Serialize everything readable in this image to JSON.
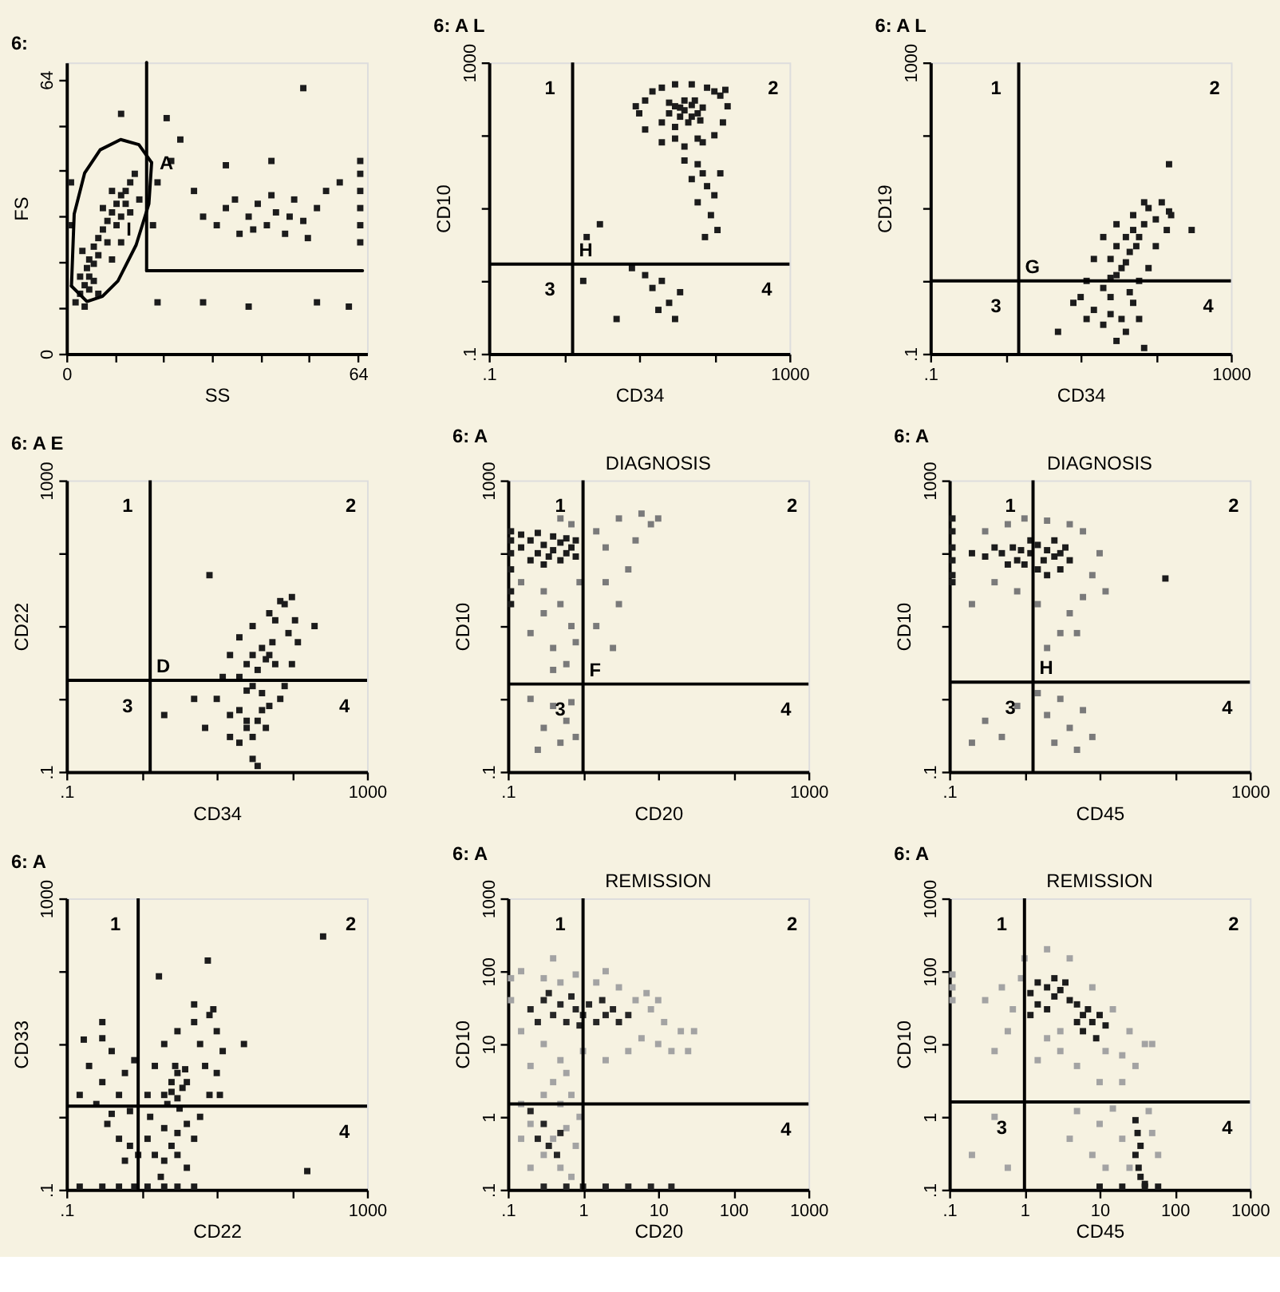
{
  "chart_data": [
    {
      "type": "scatter",
      "title": "6:",
      "xlabel": "SS",
      "ylabel": "FS",
      "xlim": [
        0,
        66
      ],
      "ylim": [
        0,
        68
      ],
      "xticks": [
        0,
        {
          "value": 10.7,
          "label": null
        },
        {
          "value": 21.3,
          "label": null
        },
        {
          "value": 32,
          "label": null
        },
        {
          "value": 42.7,
          "label": null
        },
        {
          "value": 53.3,
          "label": null
        },
        64
      ],
      "yticks": [
        0,
        {
          "value": 10.7,
          "label": null
        },
        {
          "value": 21.3,
          "label": null
        },
        {
          "value": 32,
          "label": null
        },
        {
          "value": 42.7,
          "label": null
        },
        {
          "value": 53.3,
          "label": null
        },
        64
      ],
      "series": [
        {
          "color": "#1c1c1c",
          "marker": "square",
          "x": [
            3,
            4,
            5,
            4.5,
            5,
            6,
            3.5,
            6,
            7,
            8,
            9,
            10,
            11,
            12,
            13,
            14,
            10,
            8,
            12,
            7,
            5,
            3,
            6,
            9,
            11,
            13,
            15,
            2,
            4,
            7,
            10,
            12,
            14,
            16,
            30,
            33,
            35,
            38,
            40,
            42,
            44,
            46,
            48,
            50,
            52,
            55,
            57,
            53,
            45,
            37,
            41,
            49,
            64.5,
            64.5,
            64.5,
            64.5,
            64.5,
            64.5,
            20,
            23,
            25,
            28,
            35,
            45,
            60,
            22,
            55,
            40,
            30,
            62,
            20,
            52,
            12,
            1,
            1,
            19
          ],
          "values": [
            14,
            16,
            18,
            20,
            22,
            21,
            24,
            25,
            27,
            29,
            31,
            33,
            35,
            37,
            38,
            40,
            38,
            34,
            32,
            23,
            15,
            18,
            17,
            26,
            30,
            35,
            42,
            12,
            11,
            14,
            22,
            26,
            33,
            36,
            32,
            30,
            34,
            28,
            32,
            35,
            30,
            33,
            28,
            36,
            31,
            34,
            38,
            27,
            37,
            36,
            29,
            32,
            26,
            30,
            34,
            38,
            42,
            45,
            40,
            45,
            50,
            38,
            44,
            45,
            40,
            55,
            12,
            11,
            12,
            11,
            12,
            62,
            56,
            30,
            40,
            30
          ]
        },
        {
          "type": "line",
          "name": "A",
          "color": "#000000",
          "x": [
            1.1,
            1.7,
            4.0,
            7.4,
            11.9,
            15.9,
            18.7
          ],
          "values": [
            15.8,
            32.6,
            42.2,
            47.6,
            50.0,
            48.8,
            44.6
          ]
        },
        {
          "type": "line",
          "color": "#000000",
          "x": [
            1.1,
            4.5,
            7.9,
            11.3,
            15.3,
            18.1,
            18.7
          ],
          "values": [
            15.8,
            12.2,
            13.4,
            17.0,
            25.4,
            35.0,
            44.6
          ]
        },
        {
          "type": "line",
          "color": "#000000",
          "x": [
            17.6,
            65
          ],
          "values": [
            19.4,
            19.4
          ]
        },
        {
          "type": "line",
          "color": "#000000",
          "x": [
            17.6,
            17.6
          ],
          "values": [
            19.4,
            68
          ]
        }
      ],
      "annotations": [
        {
          "text": "I",
          "x": 18.1,
          "y": 35
        }
      ]
    },
    {
      "type": "scatter",
      "title": "6: A L",
      "xlabel": "CD34",
      "ylabel": "CD10",
      "log": "xy",
      "xlim": [
        0.1,
        1000
      ],
      "ylim": [
        0.1,
        1000
      ],
      "xticks": [
        {
          "value": 0.1,
          "label": ".1"
        },
        {
          "value": 1,
          "label": null
        },
        {
          "value": 10,
          "label": null
        },
        {
          "value": 100,
          "label": null
        },
        1000
      ],
      "yticks": [
        {
          "value": 0.1,
          "label": ".1"
        },
        {
          "value": 1,
          "label": null
        },
        {
          "value": 10,
          "label": null
        },
        {
          "value": 100,
          "label": null
        },
        1000
      ],
      "series": [
        {
          "color": "#1c1c1c",
          "marker": "square",
          "x": [
            20,
            25,
            30,
            35,
            40,
            50,
            60,
            45,
            70,
            55,
            30,
            40,
            65,
            25,
            50,
            35,
            10,
            12,
            15,
            20,
            30,
            50,
            80,
            120,
            150,
            130,
            100,
            70,
            40,
            20,
            12,
            9,
            100,
            140,
            60,
            30,
            60,
            70,
            80,
            100,
            60,
            90,
            110,
            75,
            50,
            120,
            40,
            12,
            15,
            20,
            25,
            30,
            18,
            35,
            2,
            1.8,
            3,
            8,
            5
          ],
          "values": [
            150,
            200,
            250,
            180,
            220,
            260,
            200,
            150,
            240,
            300,
            130,
            300,
            160,
            280,
            180,
            240,
            200,
            300,
            400,
            450,
            500,
            500,
            450,
            350,
            250,
            150,
            100,
            80,
            70,
            80,
            120,
            250,
            400,
            420,
            90,
            90,
            40,
            30,
            20,
            15,
            12,
            8,
            5,
            4,
            25,
            30,
            45,
            1.2,
            0.8,
            1.0,
            0.5,
            0.3,
            0.4,
            0.7,
            4,
            1.0,
            6,
            1.5,
            0.3
          ]
        }
      ],
      "ref_lines": [
        {
          "axis": "x",
          "value": 1.3,
          "color": "#000000",
          "label": "H"
        },
        {
          "axis": "y",
          "value": 1.7,
          "color": "#000000"
        }
      ],
      "annotations": [
        {
          "text": "1",
          "x": 1.3,
          "y": 1000
        },
        "2",
        {
          "text": "3",
          "x": 1.3,
          "y": 1.7
        },
        {
          "text": "4",
          "x": 1000,
          "y": 1.7
        }
      ]
    },
    {
      "type": "scatter",
      "title": "6: A L",
      "xlabel": "CD34",
      "ylabel": "CD19",
      "log": "xy",
      "xlim": [
        0.1,
        1000
      ],
      "ylim": [
        0.1,
        1000
      ],
      "xticks": [
        {
          "value": 0.1,
          "label": ".1"
        },
        {
          "value": 1,
          "label": null
        },
        {
          "value": 10,
          "label": null
        },
        {
          "value": 100,
          "label": null
        },
        1000
      ],
      "yticks": [
        {
          "value": 0.1,
          "label": ".1"
        },
        {
          "value": 1,
          "label": null
        },
        {
          "value": 10,
          "label": null
        },
        {
          "value": 100,
          "label": null
        },
        1000
      ],
      "series": [
        {
          "color": "#1c1c1c",
          "marker": "square",
          "x": [
            25,
            30,
            40,
            50,
            35,
            45,
            60,
            30,
            55,
            70,
            40,
            25,
            12,
            15,
            20,
            30,
            50,
            80,
            120,
            150,
            140,
            100,
            80,
            60,
            20,
            10,
            100,
            160,
            70,
            8,
            15,
            25,
            35,
            50,
            20,
            40,
            60,
            30,
            70,
            12,
            45,
            25,
            300,
            150,
            5
          ],
          "values": [
            2,
            3,
            4,
            5,
            1.5,
            2.5,
            4,
            1.2,
            3,
            6,
            1.8,
            1.1,
            1,
            2,
            4,
            6,
            8,
            10,
            12,
            9,
            5,
            3,
            1.5,
            1,
            0.8,
            0.6,
            7,
            8,
            12,
            0.5,
            0.4,
            0.6,
            0.3,
            0.5,
            0.25,
            0.2,
            0.3,
            0.15,
            0.12,
            0.3,
            0.7,
            0.35,
            5,
            40,
            0.2
          ]
        }
      ],
      "ref_lines": [
        {
          "axis": "x",
          "value": 1.5,
          "color": "#000000",
          "label": "G"
        },
        {
          "axis": "y",
          "value": 1,
          "color": "#000000"
        }
      ],
      "annotations": [
        {
          "text": "1",
          "x": 1.5,
          "y": 1000
        },
        "2",
        {
          "text": "3",
          "x": 1.5,
          "y": 1
        },
        {
          "text": "4",
          "x": 1000,
          "y": 1
        }
      ]
    },
    {
      "type": "scatter",
      "title": "6: A E",
      "xlabel": "CD34",
      "ylabel": "CD22",
      "log": "xy",
      "xlim": [
        0.1,
        1000
      ],
      "ylim": [
        0.1,
        1000
      ],
      "xticks": [
        {
          "value": 0.1,
          "label": ".1"
        },
        {
          "value": 1,
          "label": null
        },
        {
          "value": 10,
          "label": null
        },
        {
          "value": 100,
          "label": null
        },
        1000
      ],
      "yticks": [
        {
          "value": 0.1,
          "label": ".1"
        },
        {
          "value": 1,
          "label": null
        },
        {
          "value": 10,
          "label": null
        },
        {
          "value": 100,
          "label": null
        },
        1000
      ],
      "series": [
        {
          "color": "#1c1c1c",
          "marker": "square",
          "x": [
            20,
            25,
            30,
            35,
            40,
            45,
            50,
            30,
            40,
            25,
            55,
            60,
            10,
            12,
            15,
            20,
            30,
            50,
            80,
            100,
            110,
            120,
            100,
            80,
            70,
            15,
            60,
            90,
            70,
            20,
            25,
            30,
            35,
            40,
            20,
            30,
            45,
            50,
            35,
            25,
            15,
            7,
            5,
            200,
            8,
            2
          ],
          "values": [
            2,
            3,
            4,
            2.5,
            5,
            3.5,
            4,
            1.5,
            1.2,
            1.3,
            6,
            3,
            1,
            2,
            4,
            7,
            10,
            15,
            20,
            25,
            12,
            6,
            3,
            1.5,
            1,
            0.6,
            12,
            8,
            22,
            0.7,
            0.4,
            0.3,
            0.5,
            0.7,
            0.25,
            0.15,
            0.4,
            0.8,
            0.12,
            0.5,
            0.3,
            0.4,
            1,
            10,
            50,
            0.6
          ]
        }
      ],
      "ref_lines": [
        {
          "axis": "x",
          "value": 1.3,
          "color": "#000000",
          "label": "D"
        },
        {
          "axis": "y",
          "value": 1.8,
          "color": "#000000"
        }
      ],
      "annotations": [
        {
          "text": "1",
          "x": 1.3,
          "y": 1000
        },
        "2",
        {
          "text": "3",
          "x": 1.3,
          "y": 1.8
        },
        {
          "text": "4",
          "x": 1000,
          "y": 1.8
        }
      ]
    },
    {
      "type": "scatter",
      "title": "6: A",
      "subtitle": "DIAGNOSIS",
      "xlabel": "CD20",
      "ylabel": "CD10",
      "log": "xy",
      "xlim": [
        0.1,
        1000
      ],
      "ylim": [
        0.1,
        1000
      ],
      "xticks": [
        {
          "value": 0.1,
          "label": ".1"
        },
        {
          "value": 1,
          "label": null
        },
        {
          "value": 10,
          "label": null
        },
        {
          "value": 100,
          "label": null
        },
        1000
      ],
      "yticks": [
        {
          "value": 0.1,
          "label": ".1"
        },
        {
          "value": 1,
          "label": null
        },
        {
          "value": 10,
          "label": null
        },
        {
          "value": 100,
          "label": null
        },
        1000
      ],
      "series": [
        {
          "color": "#1c1c1c",
          "marker": "square",
          "x": [
            0.11,
            0.11,
            0.11,
            0.11,
            0.11,
            0.11,
            0.15,
            0.2,
            0.25,
            0.3,
            0.4,
            0.5,
            0.6,
            0.7,
            0.8,
            0.2,
            0.3,
            0.5,
            0.15,
            0.4,
            0.6,
            0.8,
            0.25,
            0.35
          ],
          "values": [
            100,
            150,
            60,
            30,
            20,
            200,
            120,
            150,
            100,
            130,
            110,
            140,
            100,
            120,
            90,
            80,
            70,
            80,
            180,
            170,
            160,
            150,
            190,
            90
          ]
        },
        {
          "color": "#7a7a7a",
          "marker": "square",
          "x": [
            0.15,
            0.3,
            0.5,
            0.7,
            0.2,
            0.4,
            0.6,
            0.8,
            0.3,
            0.9,
            0.5,
            0.7,
            0.4,
            1.5,
            2,
            3,
            5,
            8,
            4,
            2,
            6,
            10,
            3,
            1.5,
            2.5,
            0.2,
            0.4,
            0.6,
            0.3,
            0.5,
            0.8,
            0.25,
            0.7
          ],
          "values": [
            40,
            30,
            20,
            10,
            8,
            5,
            3,
            6,
            15,
            40,
            300,
            250,
            2.5,
            200,
            120,
            300,
            150,
            250,
            60,
            40,
            350,
            300,
            20,
            10,
            5,
            1,
            0.8,
            0.5,
            0.4,
            0.25,
            0.3,
            0.2,
            0.9
          ]
        }
      ],
      "ref_lines": [
        {
          "axis": "x",
          "value": 1,
          "color": "#000000",
          "label": "F"
        },
        {
          "axis": "y",
          "value": 1.6,
          "color": "#000000"
        }
      ],
      "annotations": [
        {
          "text": "1",
          "x": 1,
          "y": 1000
        },
        "2",
        {
          "text": "3",
          "x": 1,
          "y": 1.6
        },
        {
          "text": "4",
          "x": 1000,
          "y": 1.6
        }
      ]
    },
    {
      "type": "scatter",
      "title": "6: A",
      "subtitle": "DIAGNOSIS",
      "xlabel": "CD45",
      "ylabel": "CD10",
      "log": "xy",
      "xlim": [
        0.1,
        1000
      ],
      "ylim": [
        0.1,
        1000
      ],
      "xticks": [
        {
          "value": 0.1,
          "label": ".1"
        },
        {
          "value": 1,
          "label": null
        },
        {
          "value": 10,
          "label": null
        },
        {
          "value": 100,
          "label": null
        },
        1000
      ],
      "yticks": [
        {
          "value": 0.1,
          "label": ".1"
        },
        {
          "value": 1,
          "label": null
        },
        {
          "value": 10,
          "label": null
        },
        {
          "value": 100,
          "label": null
        },
        1000
      ],
      "series": [
        {
          "color": "#1c1c1c",
          "marker": "square",
          "x": [
            0.11,
            0.11,
            0.11,
            0.11,
            0.11,
            0.11,
            0.2,
            0.3,
            0.5,
            0.7,
            0.9,
            1.2,
            1.5,
            2,
            2.5,
            3,
            4,
            1,
            1.5,
            2,
            3,
            0.8,
            1.2,
            2.5,
            0.4,
            1.8,
            3.5,
            0.6,
            75
          ],
          "values": [
            300,
            200,
            120,
            80,
            50,
            40,
            100,
            90,
            100,
            120,
            110,
            100,
            130,
            110,
            90,
            100,
            80,
            70,
            60,
            50,
            60,
            80,
            150,
            150,
            120,
            80,
            120,
            70,
            45
          ]
        },
        {
          "color": "#7a7a7a",
          "marker": "square",
          "x": [
            0.3,
            0.6,
            1,
            2,
            4,
            6,
            10,
            8,
            6,
            4,
            3,
            2,
            1.5,
            0.8,
            0.4,
            0.2,
            12,
            5,
            0.3,
            0.5,
            0.8,
            1.5,
            2,
            3,
            4,
            6,
            8,
            5,
            2.5,
            0.2
          ],
          "values": [
            200,
            250,
            300,
            280,
            250,
            200,
            100,
            50,
            25,
            15,
            8,
            5,
            20,
            30,
            40,
            20,
            30,
            8,
            0.5,
            0.3,
            0.8,
            1.2,
            0.6,
            1,
            0.4,
            0.7,
            0.3,
            0.2,
            0.25,
            0.25
          ]
        }
      ],
      "ref_lines": [
        {
          "axis": "x",
          "value": 1.3,
          "color": "#000000",
          "label": "H"
        },
        {
          "axis": "y",
          "value": 1.7,
          "color": "#000000"
        }
      ],
      "annotations": [
        {
          "text": "1",
          "x": 1.3,
          "y": 1000
        },
        "2",
        {
          "text": "3",
          "x": 1.3,
          "y": 1.7
        },
        {
          "text": "4",
          "x": 1000,
          "y": 1.7
        }
      ]
    },
    {
      "type": "scatter",
      "title": "6: A",
      "xlabel": "CD22",
      "ylabel": "CD33",
      "log": "xy",
      "xlim": [
        0.1,
        1000
      ],
      "ylim": [
        0.1,
        1000
      ],
      "xticks": [
        {
          "value": 0.1,
          "label": ".1"
        },
        {
          "value": 1,
          "label": null
        },
        {
          "value": 10,
          "label": null
        },
        {
          "value": 100,
          "label": null
        },
        1000
      ],
      "yticks": [
        {
          "value": 0.1,
          "label": ".1"
        },
        {
          "value": 1,
          "label": null
        },
        {
          "value": 10,
          "label": null
        },
        {
          "value": 100,
          "label": null
        },
        1000
      ],
      "series": [
        {
          "color": "#1c1c1c",
          "marker": "square",
          "x": [
            2,
            2.5,
            3,
            3.5,
            2.2,
            3,
            4,
            2.8,
            3.2,
            2.5,
            3.8,
            1.2,
            1.5,
            2,
            3,
            5,
            8,
            10,
            12,
            10,
            8,
            6,
            4,
            3,
            2,
            1.3,
            6,
            9,
            5,
            7,
            11,
            0.2,
            0.3,
            0.4,
            0.5,
            0.6,
            0.7,
            0.8,
            0.25,
            0.35,
            0.5,
            0.7,
            0.9,
            0.6,
            0.4,
            0.15,
            0.3,
            1.2,
            1.5,
            2,
            2.5,
            3,
            4,
            5,
            1.8,
            0.15,
            0.3,
            0.5,
            0.8,
            1.2,
            2,
            3,
            5,
            1.7,
            7.6,
            260,
            23,
            0.3,
            0.17,
            160
          ],
          "values": [
            2,
            3,
            4,
            2.5,
            1.5,
            1.8,
            3,
            5,
            1.3,
            2.2,
            4.5,
            2,
            5,
            10,
            15,
            20,
            25,
            15,
            8,
            4,
            2,
            1,
            0.8,
            0.6,
            0.7,
            1,
            10,
            30,
            35,
            5,
            2,
            5,
            3,
            8,
            2,
            4,
            1.2,
            6,
            1.5,
            0.8,
            0.5,
            0.4,
            0.3,
            0.25,
            1.1,
            2,
            12,
            0.5,
            0.3,
            0.25,
            0.4,
            0.3,
            0.2,
            0.5,
            0.15,
            0.11,
            0.11,
            0.11,
            0.11,
            0.11,
            0.11,
            0.11,
            0.11,
            85,
            140,
            300,
            10,
            20,
            11.5,
            0.18
          ]
        }
      ],
      "ref_lines": [
        {
          "axis": "x",
          "value": 0.9,
          "color": "#000000"
        },
        {
          "axis": "y",
          "value": 1.4,
          "color": "#000000"
        }
      ],
      "annotations": [
        {
          "text": "1",
          "x": 0.9,
          "y": 1000
        },
        "2",
        {
          "text": "4",
          "x": 1000,
          "y": 1.4
        }
      ]
    },
    {
      "type": "scatter",
      "title": "6: A",
      "subtitle": "REMISSION",
      "xlabel": "CD20",
      "ylabel": "CD10",
      "log": "xy",
      "xlim": [
        0.1,
        1000
      ],
      "ylim": [
        0.1,
        1000
      ],
      "xticks": [
        {
          "value": 0.1,
          "label": ".1"
        },
        1,
        10,
        100,
        1000
      ],
      "yticks": [
        {
          "value": 0.1,
          "label": ".1"
        },
        1,
        10,
        100,
        1000
      ],
      "series": [
        {
          "color": "#a3a3a3",
          "marker": "square",
          "x": [
            0.11,
            0.11,
            0.15,
            0.3,
            0.5,
            0.8,
            1.5,
            3,
            5,
            8,
            12,
            20,
            25,
            15,
            10,
            6,
            4,
            2,
            1,
            0.5,
            0.3,
            0.15,
            0.2,
            7,
            10,
            30,
            2,
            0.4,
            0.15,
            0.3,
            0.5,
            0.7,
            0.2,
            0.4,
            0.6,
            0.8,
            0.3,
            0.5,
            0.7,
            0.2,
            0.15,
            0.9,
            0.4,
            0.6
          ],
          "values": [
            80,
            40,
            100,
            80,
            70,
            90,
            70,
            60,
            40,
            30,
            20,
            15,
            8,
            8,
            10,
            12,
            8,
            6,
            8,
            6,
            10,
            15,
            5,
            50,
            40,
            15,
            100,
            150,
            1.5,
            2,
            1.5,
            2,
            0.8,
            0.5,
            0.7,
            0.4,
            0.3,
            0.2,
            0.15,
            0.2,
            0.5,
            1,
            3,
            4
          ]
        },
        {
          "color": "#262626",
          "marker": "square",
          "x": [
            0.2,
            0.3,
            0.4,
            0.5,
            0.6,
            0.8,
            1,
            1.2,
            1.5,
            2,
            2.5,
            3,
            0.35,
            0.7,
            1.8,
            0.25,
            4,
            0.9,
            0.25,
            0.35,
            0.5,
            0.3,
            0.45,
            0.2,
            0.3,
            0.6,
            1,
            2,
            4,
            8,
            15
          ],
          "values": [
            30,
            40,
            25,
            35,
            20,
            30,
            25,
            35,
            20,
            25,
            30,
            20,
            50,
            45,
            40,
            20,
            25,
            18,
            0.5,
            0.4,
            0.6,
            0.8,
            0.3,
            1.2,
            0.11,
            0.11,
            0.11,
            0.11,
            0.11,
            0.11,
            0.11
          ]
        }
      ],
      "ref_lines": [
        {
          "axis": "x",
          "value": 1,
          "color": "#000000"
        },
        {
          "axis": "y",
          "value": 1.5,
          "color": "#000000"
        }
      ],
      "annotations": [
        {
          "text": "1",
          "x": 1,
          "y": 1000
        },
        "2",
        {
          "text": "4",
          "x": 1000,
          "y": 1.5
        }
      ]
    },
    {
      "type": "scatter",
      "title": "6: A",
      "subtitle": "REMISSION",
      "xlabel": "CD45",
      "ylabel": "CD10",
      "log": "xy",
      "xlim": [
        0.1,
        1000
      ],
      "ylim": [
        0.1,
        1000
      ],
      "xticks": [
        {
          "value": 0.1,
          "label": ".1"
        },
        1,
        10,
        100,
        1000
      ],
      "yticks": [
        {
          "value": 0.1,
          "label": ".1"
        },
        1,
        10,
        100,
        1000
      ],
      "series": [
        {
          "color": "#a3a3a3",
          "marker": "square",
          "x": [
            0.11,
            0.11,
            0.11,
            0.3,
            0.5,
            0.7,
            0.9,
            1,
            2,
            4,
            8,
            15,
            25,
            40,
            30,
            20,
            10,
            5,
            3,
            2,
            1.5,
            0.6,
            3,
            12,
            20,
            50,
            0.4,
            5,
            10,
            15,
            20,
            8,
            25,
            50,
            60,
            4,
            12,
            45,
            0.2,
            0.4,
            0.6
          ],
          "values": [
            40,
            60,
            90,
            40,
            60,
            30,
            80,
            150,
            200,
            150,
            60,
            30,
            15,
            10,
            5,
            3,
            3,
            5,
            8,
            12,
            6,
            15,
            15,
            8,
            7,
            10,
            8,
            1.2,
            0.8,
            1.3,
            0.5,
            0.3,
            0.2,
            0.6,
            0.3,
            0.5,
            0.2,
            1.2,
            0.3,
            1,
            0.2
          ]
        },
        {
          "color": "#1c1c1c",
          "marker": "square",
          "x": [
            1.2,
            1.5,
            2,
            2.5,
            3,
            1.5,
            2,
            1.2,
            3.5,
            4,
            5,
            6,
            7,
            8,
            10,
            6,
            9,
            12,
            5,
            2.5,
            30,
            32,
            35,
            30,
            33,
            35,
            40,
            10,
            20,
            40,
            60
          ],
          "values": [
            50,
            70,
            60,
            45,
            55,
            35,
            30,
            25,
            70,
            40,
            35,
            25,
            30,
            20,
            25,
            15,
            12,
            18,
            20,
            80,
            0.9,
            0.6,
            0.4,
            0.3,
            0.2,
            0.15,
            0.12,
            0.11,
            0.11,
            0.11,
            0.11
          ]
        }
      ],
      "ref_lines": [
        {
          "axis": "x",
          "value": 1,
          "color": "#000000"
        },
        {
          "axis": "y",
          "value": 1.6,
          "color": "#000000"
        }
      ],
      "annotations": [
        {
          "text": "1",
          "x": 1,
          "y": 1000
        },
        "2",
        {
          "text": "3",
          "x": 1,
          "y": 1.6
        },
        {
          "text": "4",
          "x": 1000,
          "y": 1.6
        }
      ]
    }
  ]
}
